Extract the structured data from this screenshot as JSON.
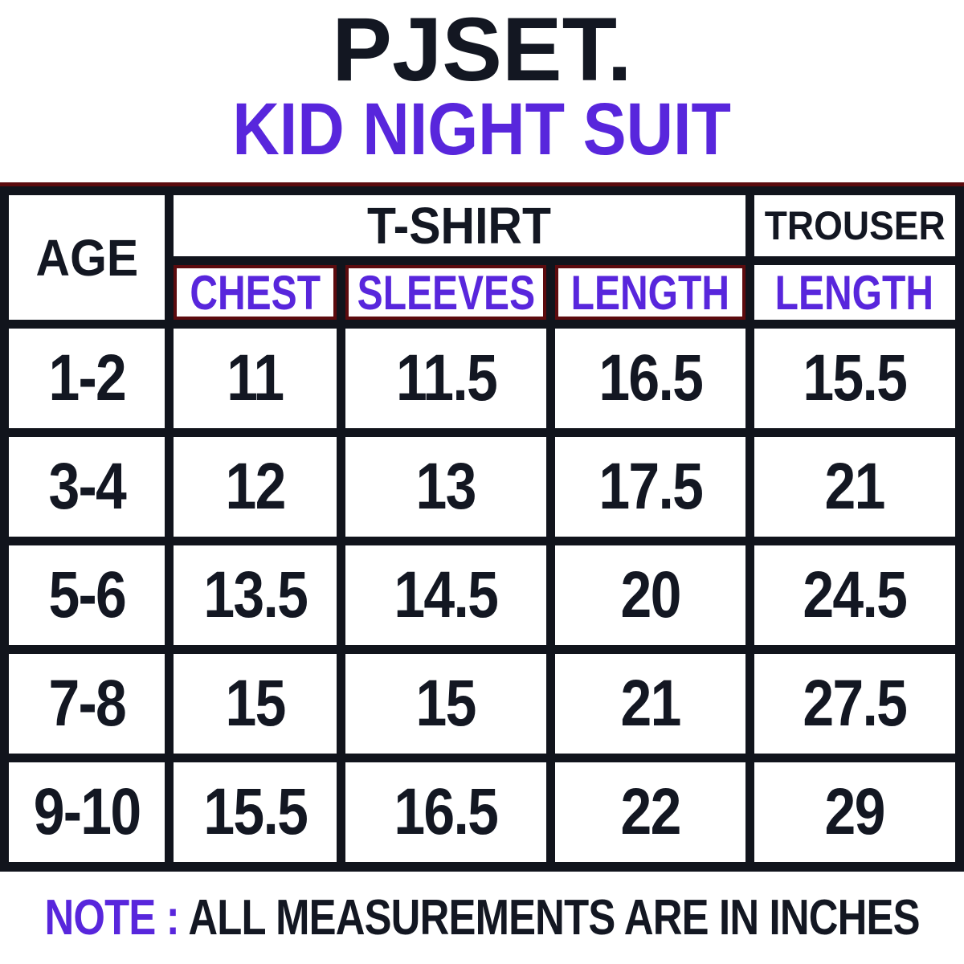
{
  "brand": {
    "title": "PJSET."
  },
  "subtitle": "KID NIGHT SUIT",
  "colors": {
    "accent_purple": "#5826dc",
    "text_black": "#131722",
    "grid_black": "#11141c",
    "red_border": "#5c0b0e",
    "background": "#ffffff"
  },
  "table": {
    "col_headers": {
      "age": "AGE",
      "tshirt": "T-SHIRT",
      "trouser": "TROUSER"
    },
    "sub_headers": {
      "chest": "CHEST",
      "sleeves": "SLEEVES",
      "length": "LENGTH",
      "trouser_length": "LENGTH"
    },
    "rows": [
      {
        "age": "1-2",
        "chest": "11",
        "sleeves": "11.5",
        "length": "16.5",
        "trouser_length": "15.5"
      },
      {
        "age": "3-4",
        "chest": "12",
        "sleeves": "13",
        "length": "17.5",
        "trouser_length": "21"
      },
      {
        "age": "5-6",
        "chest": "13.5",
        "sleeves": "14.5",
        "length": "20",
        "trouser_length": "24.5"
      },
      {
        "age": "7-8",
        "chest": "15",
        "sleeves": "15",
        "length": "21",
        "trouser_length": "27.5"
      },
      {
        "age": "9-10",
        "chest": "15.5",
        "sleeves": "16.5",
        "length": "22",
        "trouser_length": "29"
      }
    ]
  },
  "note": {
    "label": "NOTE :",
    "text": " ALL MEASUREMENTS ARE IN INCHES"
  }
}
